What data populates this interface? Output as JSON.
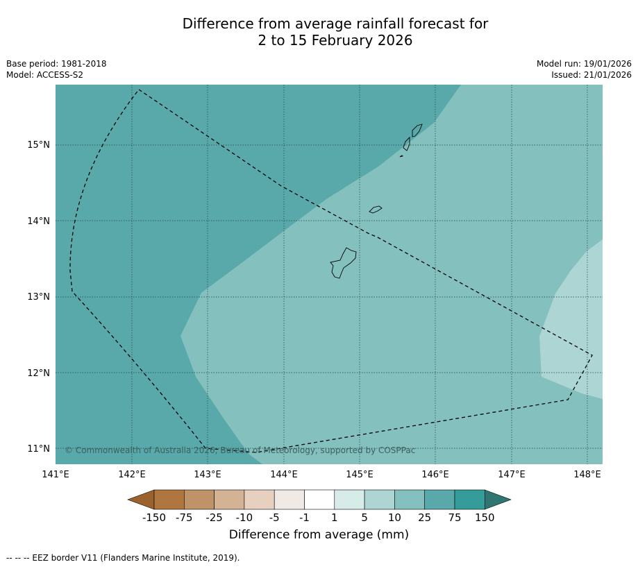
{
  "title": {
    "line1": "Difference from average rainfall forecast for",
    "line2": "2 to 15 February 2026"
  },
  "meta": {
    "base_period": "Base period: 1981-2018",
    "model": "Model: ACCESS-S2",
    "model_run": "Model run: 19/01/2026",
    "issued": "Issued: 21/01/2026"
  },
  "map": {
    "lon_labels": [
      "141°E",
      "142°E",
      "143°E",
      "144°E",
      "145°E",
      "146°E",
      "147°E",
      "148°E"
    ],
    "lat_labels": [
      "15°N",
      "14°N",
      "13°N",
      "12°N",
      "11°N"
    ],
    "copyright": "© Commonwealth of Australia 2026, Bureau of Meteorology, supported by COSPPac",
    "colors": {
      "cat_25_75": "#5aa9aa",
      "cat_10_25": "#84c0be",
      "cat_5_10": "#acd5d4"
    }
  },
  "colorbar": {
    "title": "Difference from average (mm)",
    "ticks": [
      "-150",
      "-75",
      "-25",
      "-10",
      "-5",
      "-1",
      "1",
      "5",
      "10",
      "25",
      "75",
      "150"
    ],
    "colors": [
      "#9c622d",
      "#b07640",
      "#c09268",
      "#d4b294",
      "#e7d0bf",
      "#efeae6",
      "#ffffff",
      "#d7ebe9",
      "#acd5d4",
      "#84c0be",
      "#5aa9aa",
      "#369c99",
      "#2f7673"
    ]
  },
  "footnote": "--  --  -- EEZ border V11 (Flanders Marine Institute, 2019)."
}
